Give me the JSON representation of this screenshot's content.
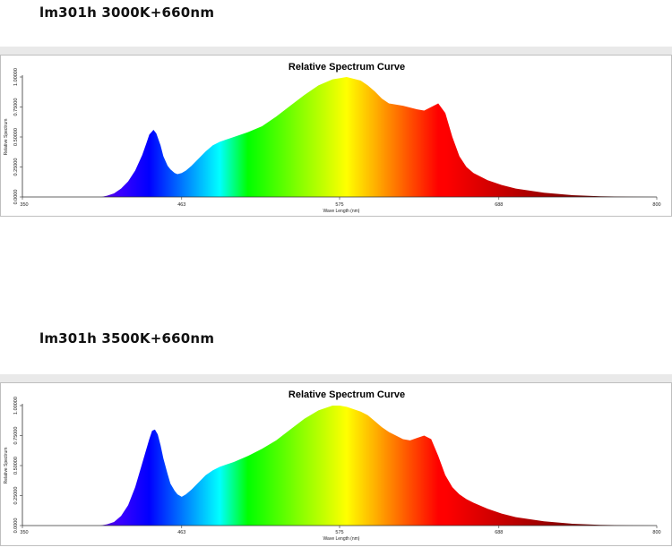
{
  "charts": [
    {
      "heading": "lm301h 3000K+660nm",
      "chart_data": {
        "type": "area",
        "title": "Relative Spectrum Curve",
        "xlabel": "Wave Length (nm)",
        "ylabel": "Relative Spectrum",
        "xlim": [
          350,
          800
        ],
        "ylim": [
          0,
          1
        ],
        "x_ticks": [
          "350",
          "463",
          "575",
          "688",
          "800"
        ],
        "y_ticks": [
          "0.0000",
          "0.25000",
          "0.50000",
          "0.75000",
          "1.00000"
        ],
        "fill": "wavelength-color gradient",
        "grid": false,
        "legend": "none",
        "x": [
          406,
          410,
          415,
          420,
          425,
          430,
          435,
          438,
          440,
          443,
          445,
          448,
          450,
          453,
          455,
          458,
          460,
          463,
          466,
          470,
          475,
          480,
          485,
          490,
          495,
          500,
          510,
          520,
          530,
          540,
          550,
          560,
          570,
          580,
          590,
          595,
          600,
          605,
          610,
          620,
          630,
          635,
          640,
          645,
          650,
          655,
          660,
          665,
          670,
          680,
          690,
          700,
          720,
          740,
          760,
          780,
          790,
          800
        ],
        "y": [
          0,
          0.01,
          0.03,
          0.07,
          0.13,
          0.22,
          0.35,
          0.45,
          0.52,
          0.56,
          0.53,
          0.43,
          0.34,
          0.26,
          0.23,
          0.2,
          0.19,
          0.2,
          0.22,
          0.26,
          0.32,
          0.38,
          0.43,
          0.46,
          0.48,
          0.5,
          0.54,
          0.59,
          0.67,
          0.76,
          0.85,
          0.93,
          0.98,
          1.0,
          0.97,
          0.93,
          0.88,
          0.82,
          0.78,
          0.76,
          0.73,
          0.72,
          0.75,
          0.78,
          0.7,
          0.5,
          0.34,
          0.25,
          0.2,
          0.14,
          0.1,
          0.07,
          0.035,
          0.015,
          0.006,
          0.002,
          0.001,
          0
        ]
      }
    },
    {
      "heading": "lm301h 3500K+660nm",
      "chart_data": {
        "type": "area",
        "title": "Relative Spectrum Curve",
        "xlabel": "Wave Length (nm)",
        "ylabel": "Relative Spectrum",
        "xlim": [
          350,
          800
        ],
        "ylim": [
          0,
          1
        ],
        "x_ticks": [
          "350",
          "463",
          "575",
          "688",
          "800"
        ],
        "y_ticks": [
          "0.0000",
          "0.25000",
          "0.50000",
          "0.75000",
          "1.00000"
        ],
        "fill": "wavelength-color gradient",
        "grid": false,
        "legend": "none",
        "x": [
          405,
          410,
          415,
          420,
          425,
          430,
          435,
          438,
          440,
          442,
          444,
          446,
          448,
          450,
          453,
          455,
          458,
          460,
          463,
          466,
          470,
          475,
          480,
          485,
          490,
          495,
          500,
          510,
          520,
          530,
          540,
          550,
          560,
          570,
          575,
          580,
          590,
          595,
          600,
          605,
          610,
          615,
          620,
          625,
          630,
          635,
          640,
          645,
          650,
          655,
          660,
          665,
          670,
          680,
          690,
          700,
          720,
          740,
          760,
          780,
          800
        ],
        "y": [
          0,
          0.01,
          0.03,
          0.08,
          0.17,
          0.32,
          0.52,
          0.64,
          0.72,
          0.79,
          0.8,
          0.76,
          0.67,
          0.56,
          0.43,
          0.35,
          0.29,
          0.26,
          0.24,
          0.26,
          0.3,
          0.36,
          0.42,
          0.46,
          0.49,
          0.51,
          0.53,
          0.58,
          0.64,
          0.71,
          0.8,
          0.89,
          0.96,
          1.0,
          1.0,
          0.99,
          0.95,
          0.92,
          0.87,
          0.82,
          0.78,
          0.75,
          0.72,
          0.71,
          0.73,
          0.75,
          0.72,
          0.58,
          0.42,
          0.32,
          0.26,
          0.22,
          0.19,
          0.14,
          0.1,
          0.07,
          0.035,
          0.015,
          0.006,
          0.002,
          0
        ]
      }
    }
  ]
}
